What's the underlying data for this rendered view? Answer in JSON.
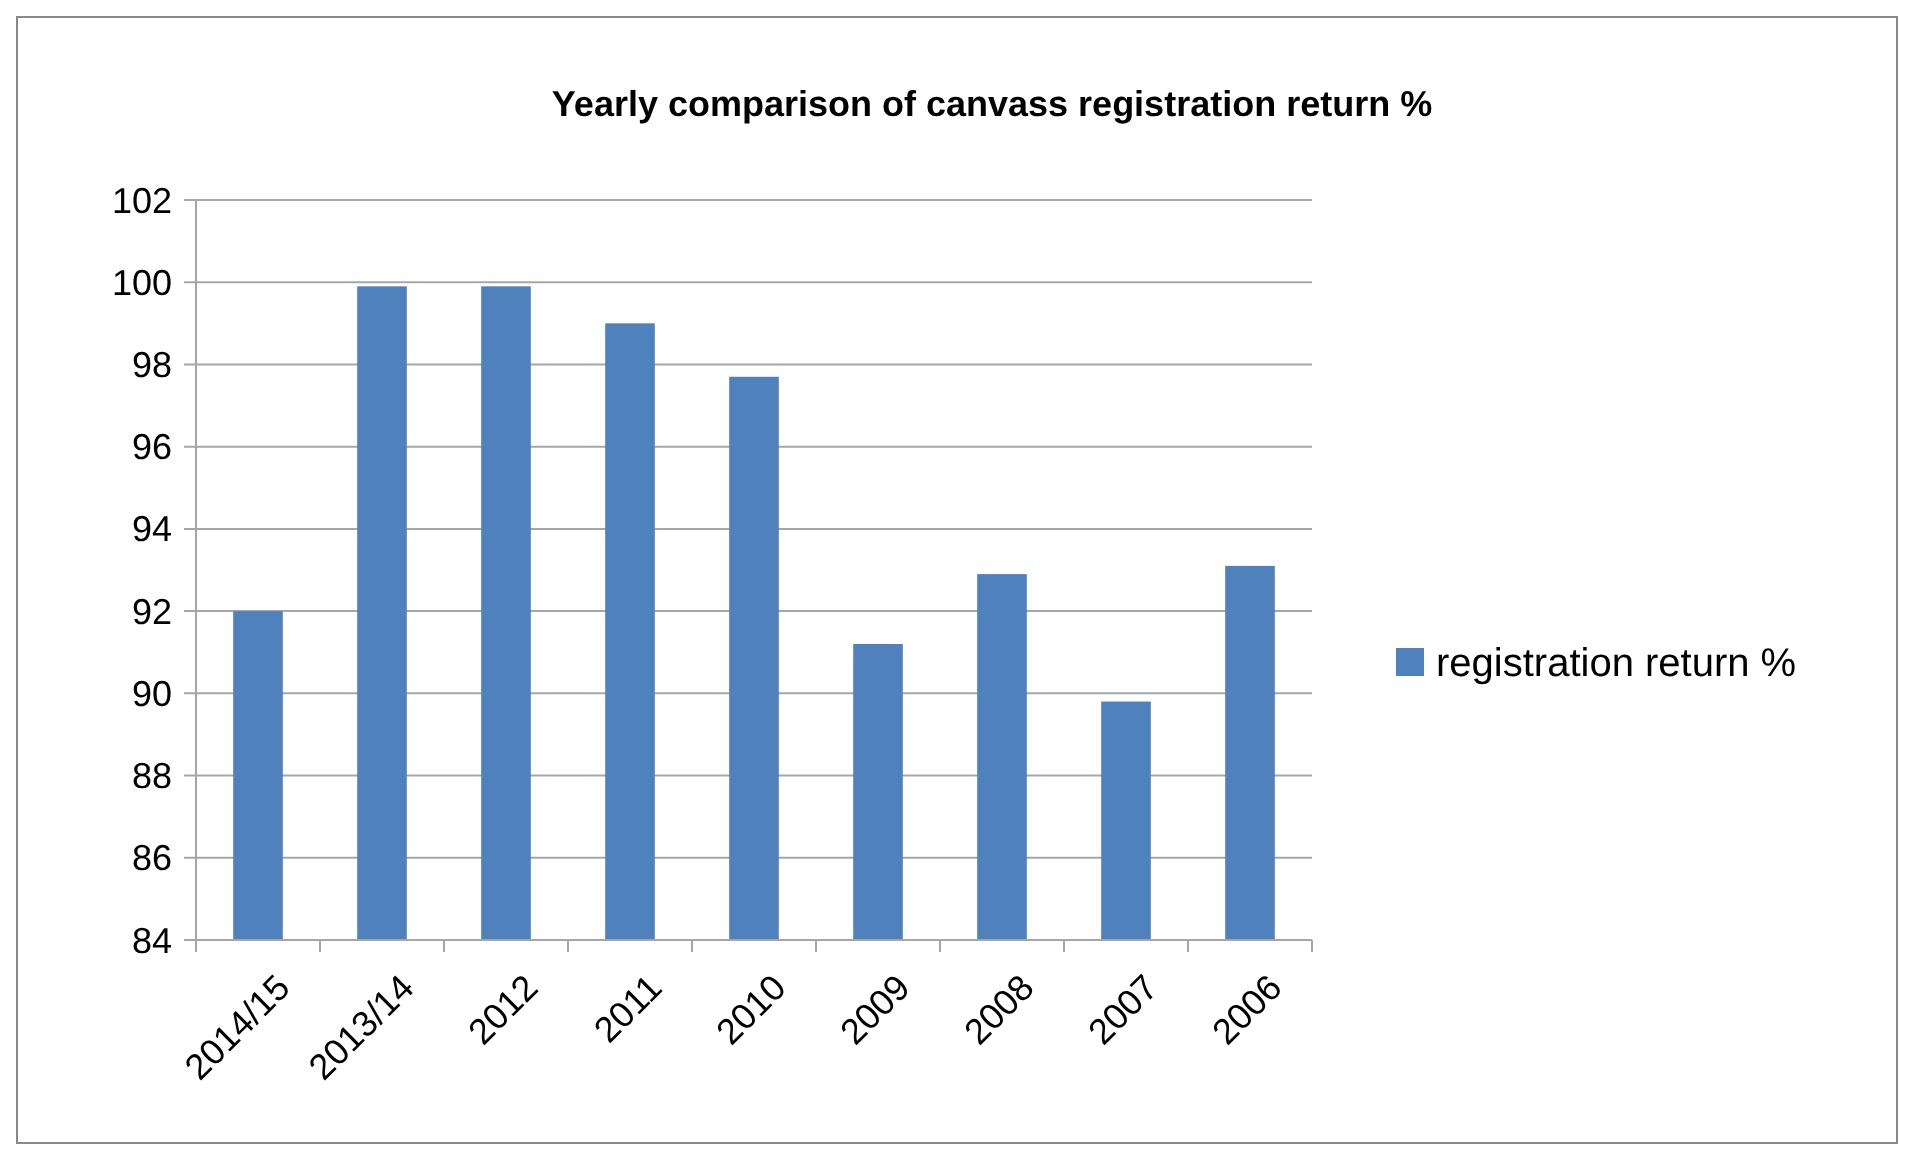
{
  "chart_data": {
    "type": "bar",
    "title": "Yearly comparison of canvass registration return %",
    "categories": [
      "2014/15",
      "2013/14",
      "2012",
      "2011",
      "2010",
      "2009",
      "2008",
      "2007",
      "2006"
    ],
    "series": [
      {
        "name": "registration return %",
        "color": "#4f81bd",
        "values": [
          92.0,
          99.9,
          99.9,
          99.0,
          97.7,
          91.2,
          92.9,
          89.8,
          93.1
        ]
      }
    ],
    "ylim": [
      84,
      102
    ],
    "yticks": [
      84,
      86,
      88,
      90,
      92,
      94,
      96,
      98,
      100,
      102
    ],
    "grid": "y",
    "legend": "right"
  }
}
